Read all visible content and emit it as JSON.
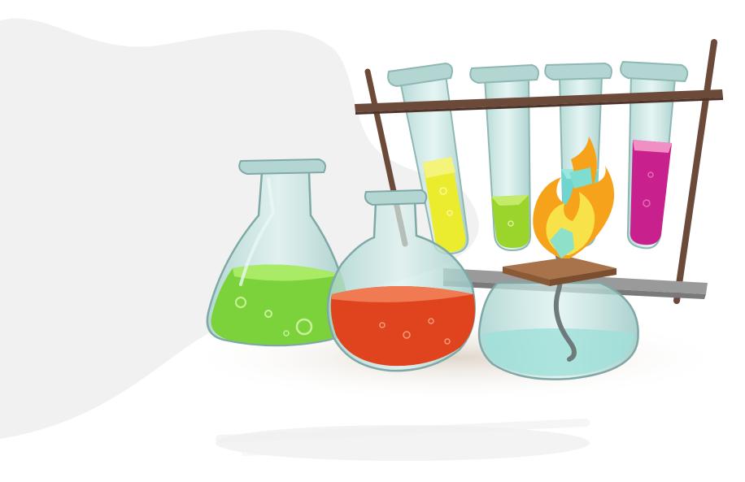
{
  "illustration": {
    "subject": "chemistry-lab-glassware",
    "colors": {
      "background_blob": "#f1f1f1",
      "glass": "#b9dcd8",
      "glass_outline": "#7fa9a6",
      "rack_wood": "#6b4a3a",
      "rack_bar": "#8a8a8a",
      "liquid_green": "#7bd23a",
      "liquid_red": "#e0441e",
      "liquid_yellow": "#ecec2e",
      "liquid_lime": "#9bd42a",
      "liquid_teal": "#6fd6cf",
      "liquid_magenta": "#c8208c",
      "flame_orange": "#f7a21b",
      "flame_yellow": "#f8e24a",
      "burner_plate": "#a8734a"
    },
    "tubes": [
      {
        "liquid": "yellow",
        "fill_level": 0.55
      },
      {
        "liquid": "lime",
        "fill_level": 0.3
      },
      {
        "liquid": "teal",
        "fill_level": 0.6
      },
      {
        "liquid": "magenta",
        "fill_level": 0.6
      }
    ]
  }
}
